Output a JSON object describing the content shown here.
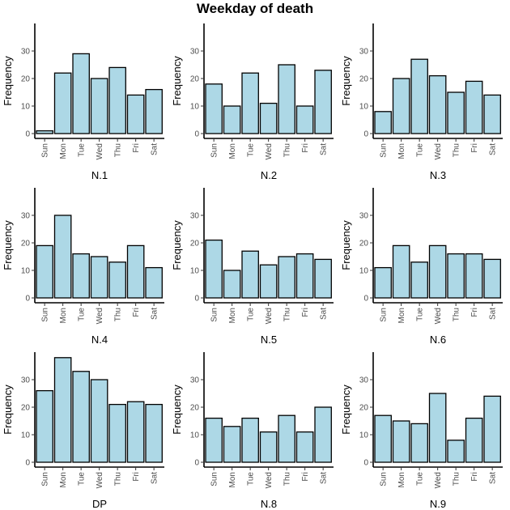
{
  "title": "Weekday of death",
  "chart_data": [
    {
      "type": "bar",
      "xlabel": "N.1",
      "ylabel": "Frequency",
      "ylim": [
        0,
        40
      ],
      "yticks": [
        0,
        10,
        20,
        30
      ],
      "categories": [
        "Sun",
        "Mon",
        "Tue",
        "Wed",
        "Thu",
        "Fri",
        "Sat"
      ],
      "values": [
        1,
        22,
        29,
        20,
        24,
        14,
        16
      ]
    },
    {
      "type": "bar",
      "xlabel": "N.2",
      "ylabel": "Frequency",
      "ylim": [
        0,
        40
      ],
      "yticks": [
        0,
        10,
        20,
        30
      ],
      "categories": [
        "Sun",
        "Mon",
        "Tue",
        "Wed",
        "Thu",
        "Fri",
        "Sat"
      ],
      "values": [
        18,
        10,
        22,
        11,
        25,
        10,
        23
      ]
    },
    {
      "type": "bar",
      "xlabel": "N.3",
      "ylabel": "Frequency",
      "ylim": [
        0,
        40
      ],
      "yticks": [
        0,
        10,
        20,
        30
      ],
      "categories": [
        "Sun",
        "Mon",
        "Tue",
        "Wed",
        "Thu",
        "Fri",
        "Sat"
      ],
      "values": [
        8,
        20,
        27,
        21,
        15,
        19,
        14
      ]
    },
    {
      "type": "bar",
      "xlabel": "N.4",
      "ylabel": "Frequency",
      "ylim": [
        0,
        40
      ],
      "yticks": [
        0,
        10,
        20,
        30
      ],
      "categories": [
        "Sun",
        "Mon",
        "Tue",
        "Wed",
        "Thu",
        "Fri",
        "Sat"
      ],
      "values": [
        19,
        30,
        16,
        15,
        13,
        19,
        11
      ]
    },
    {
      "type": "bar",
      "xlabel": "N.5",
      "ylabel": "Frequency",
      "ylim": [
        0,
        40
      ],
      "yticks": [
        0,
        10,
        20,
        30
      ],
      "categories": [
        "Sun",
        "Mon",
        "Tue",
        "Wed",
        "Thu",
        "Fri",
        "Sat"
      ],
      "values": [
        21,
        10,
        17,
        12,
        15,
        16,
        14
      ]
    },
    {
      "type": "bar",
      "xlabel": "N.6",
      "ylabel": "Frequency",
      "ylim": [
        0,
        40
      ],
      "yticks": [
        0,
        10,
        20,
        30
      ],
      "categories": [
        "Sun",
        "Mon",
        "Tue",
        "Wed",
        "Thu",
        "Fri",
        "Sat"
      ],
      "values": [
        11,
        19,
        13,
        19,
        16,
        16,
        14
      ]
    },
    {
      "type": "bar",
      "xlabel": "DP",
      "ylabel": "Frequency",
      "ylim": [
        0,
        40
      ],
      "yticks": [
        0,
        10,
        20,
        30
      ],
      "categories": [
        "Sun",
        "Mon",
        "Tue",
        "Wed",
        "Thu",
        "Fri",
        "Sat"
      ],
      "values": [
        26,
        38,
        33,
        30,
        21,
        22,
        21
      ]
    },
    {
      "type": "bar",
      "xlabel": "N.8",
      "ylabel": "Frequency",
      "ylim": [
        0,
        40
      ],
      "yticks": [
        0,
        10,
        20,
        30
      ],
      "categories": [
        "Sun",
        "Mon",
        "Tue",
        "Wed",
        "Thu",
        "Fri",
        "Sat"
      ],
      "values": [
        16,
        13,
        16,
        11,
        17,
        11,
        20
      ]
    },
    {
      "type": "bar",
      "xlabel": "N.9",
      "ylabel": "Frequency",
      "ylim": [
        0,
        40
      ],
      "yticks": [
        0,
        10,
        20,
        30
      ],
      "categories": [
        "Sun",
        "Mon",
        "Tue",
        "Wed",
        "Thu",
        "Fri",
        "Sat"
      ],
      "values": [
        17,
        15,
        14,
        25,
        8,
        16,
        24
      ]
    }
  ]
}
